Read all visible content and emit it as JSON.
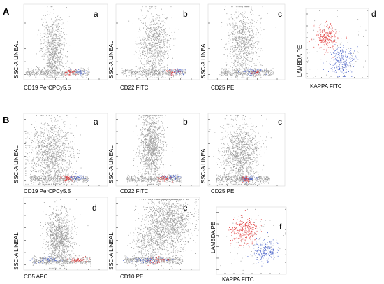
{
  "sections": [
    {
      "label": "A"
    },
    {
      "label": "B"
    }
  ],
  "chart_data": [
    {
      "section": "A",
      "panel": "a",
      "type": "scatter",
      "xlabel": "CD19 PerCPCy5.5",
      "ylabel": "SSC-A LINEAL",
      "populations": [
        {
          "color": "gray",
          "kind": "blob",
          "center": [
            0.35,
            0.6
          ],
          "spread": [
            0.07,
            0.22
          ],
          "n": 900
        },
        {
          "color": "gray",
          "kind": "band",
          "center": [
            0.4,
            0.9
          ],
          "spread": [
            0.38,
            0.025
          ],
          "n": 420
        },
        {
          "color": "red",
          "kind": "blob",
          "center": [
            0.55,
            0.9
          ],
          "spread": [
            0.035,
            0.02
          ],
          "n": 50
        },
        {
          "color": "blue",
          "kind": "blob",
          "center": [
            0.65,
            0.89
          ],
          "spread": [
            0.04,
            0.02
          ],
          "n": 45
        }
      ]
    },
    {
      "section": "A",
      "panel": "b",
      "type": "scatter",
      "xlabel": "CD22 FITC",
      "ylabel": "SSC-A LINEAL",
      "populations": [
        {
          "color": "gray",
          "kind": "blob",
          "center": [
            0.45,
            0.55
          ],
          "spread": [
            0.09,
            0.22
          ],
          "n": 900
        },
        {
          "color": "gray",
          "kind": "band",
          "center": [
            0.45,
            0.9
          ],
          "spread": [
            0.38,
            0.025
          ],
          "n": 420
        },
        {
          "color": "blue",
          "kind": "blob",
          "center": [
            0.72,
            0.89
          ],
          "spread": [
            0.06,
            0.02
          ],
          "n": 60
        },
        {
          "color": "red",
          "kind": "blob",
          "center": [
            0.66,
            0.9
          ],
          "spread": [
            0.04,
            0.018
          ],
          "n": 40
        }
      ]
    },
    {
      "section": "A",
      "panel": "c",
      "type": "scatter",
      "xlabel": "CD25 PE",
      "ylabel": "SSC-A LINEAL",
      "populations": [
        {
          "color": "gray",
          "kind": "blob",
          "center": [
            0.45,
            0.5
          ],
          "spread": [
            0.1,
            0.22
          ],
          "n": 900
        },
        {
          "color": "gray",
          "kind": "band",
          "center": [
            0.5,
            0.9
          ],
          "spread": [
            0.35,
            0.025
          ],
          "n": 420
        },
        {
          "color": "blue",
          "kind": "blob",
          "center": [
            0.58,
            0.89
          ],
          "spread": [
            0.07,
            0.02
          ],
          "n": 60
        },
        {
          "color": "red",
          "kind": "blob",
          "center": [
            0.62,
            0.9
          ],
          "spread": [
            0.04,
            0.018
          ],
          "n": 30
        }
      ]
    },
    {
      "section": "A",
      "panel": "d",
      "type": "scatter",
      "xlabel": "KAPPA FITC",
      "ylabel": "LAMBDA PE",
      "populations": [
        {
          "color": "red",
          "kind": "blob",
          "center": [
            0.32,
            0.4
          ],
          "spread": [
            0.09,
            0.09
          ],
          "n": 260
        },
        {
          "color": "blue",
          "kind": "blob",
          "center": [
            0.58,
            0.75
          ],
          "spread": [
            0.1,
            0.1
          ],
          "n": 280
        },
        {
          "color": "gray",
          "kind": "blob",
          "center": [
            0.45,
            0.55
          ],
          "spread": [
            0.3,
            0.25
          ],
          "n": 80
        }
      ]
    },
    {
      "section": "B",
      "panel": "a",
      "type": "scatter",
      "xlabel": "CD19 PerCPCy5.5",
      "ylabel": "SSC-A LINEAL",
      "populations": [
        {
          "color": "gray",
          "kind": "blob",
          "center": [
            0.32,
            0.55
          ],
          "spread": [
            0.13,
            0.22
          ],
          "n": 1300
        },
        {
          "color": "gray",
          "kind": "band",
          "center": [
            0.42,
            0.9
          ],
          "spread": [
            0.35,
            0.025
          ],
          "n": 450
        },
        {
          "color": "red",
          "kind": "blob",
          "center": [
            0.52,
            0.89
          ],
          "spread": [
            0.04,
            0.022
          ],
          "n": 60
        },
        {
          "color": "blue",
          "kind": "blob",
          "center": [
            0.64,
            0.88
          ],
          "spread": [
            0.05,
            0.022
          ],
          "n": 60
        }
      ]
    },
    {
      "section": "B",
      "panel": "b",
      "type": "scatter",
      "xlabel": "CD22 FITC",
      "ylabel": "SSC-A LINEAL",
      "populations": [
        {
          "color": "gray",
          "kind": "blob",
          "center": [
            0.42,
            0.45
          ],
          "spread": [
            0.07,
            0.22
          ],
          "n": 1200
        },
        {
          "color": "gray",
          "kind": "band",
          "center": [
            0.45,
            0.9
          ],
          "spread": [
            0.33,
            0.025
          ],
          "n": 420
        },
        {
          "color": "red",
          "kind": "blob",
          "center": [
            0.58,
            0.89
          ],
          "spread": [
            0.05,
            0.02
          ],
          "n": 55
        },
        {
          "color": "blue",
          "kind": "blob",
          "center": [
            0.68,
            0.88
          ],
          "spread": [
            0.05,
            0.02
          ],
          "n": 55
        }
      ]
    },
    {
      "section": "B",
      "panel": "c",
      "type": "scatter",
      "xlabel": "CD25 PE",
      "ylabel": "SSC-A LINEAL",
      "populations": [
        {
          "color": "gray",
          "kind": "blob",
          "center": [
            0.42,
            0.55
          ],
          "spread": [
            0.12,
            0.22
          ],
          "n": 1200
        },
        {
          "color": "gray",
          "kind": "band",
          "center": [
            0.45,
            0.9
          ],
          "spread": [
            0.35,
            0.025
          ],
          "n": 420
        },
        {
          "color": "blue",
          "kind": "blob",
          "center": [
            0.52,
            0.89
          ],
          "spread": [
            0.05,
            0.02
          ],
          "n": 65
        },
        {
          "color": "red",
          "kind": "blob",
          "center": [
            0.48,
            0.9
          ],
          "spread": [
            0.03,
            0.02
          ],
          "n": 35
        }
      ]
    },
    {
      "section": "B",
      "panel": "d",
      "type": "scatter",
      "xlabel": "CD5 APC",
      "ylabel": "SSC-A LINEAL",
      "populations": [
        {
          "color": "gray",
          "kind": "blob",
          "center": [
            0.42,
            0.55
          ],
          "spread": [
            0.08,
            0.18
          ],
          "n": 1200
        },
        {
          "color": "gray",
          "kind": "band",
          "center": [
            0.45,
            0.87
          ],
          "spread": [
            0.35,
            0.03
          ],
          "n": 450
        },
        {
          "color": "blue",
          "kind": "blob",
          "center": [
            0.28,
            0.86
          ],
          "spread": [
            0.1,
            0.02
          ],
          "n": 60
        },
        {
          "color": "red",
          "kind": "blob",
          "center": [
            0.62,
            0.86
          ],
          "spread": [
            0.05,
            0.02
          ],
          "n": 50
        }
      ]
    },
    {
      "section": "B",
      "panel": "e",
      "type": "scatter",
      "xlabel": "CD10 PE",
      "ylabel": "SSC-A LINEAL",
      "populations": [
        {
          "color": "gray",
          "kind": "blob",
          "center": [
            0.62,
            0.35
          ],
          "spread": [
            0.14,
            0.2
          ],
          "n": 1500
        },
        {
          "color": "gray",
          "kind": "blob",
          "center": [
            0.38,
            0.62
          ],
          "spread": [
            0.1,
            0.12
          ],
          "n": 350
        },
        {
          "color": "gray",
          "kind": "band",
          "center": [
            0.45,
            0.86
          ],
          "spread": [
            0.35,
            0.03
          ],
          "n": 450
        },
        {
          "color": "blue",
          "kind": "blob",
          "center": [
            0.38,
            0.86
          ],
          "spread": [
            0.12,
            0.02
          ],
          "n": 70
        },
        {
          "color": "red",
          "kind": "blob",
          "center": [
            0.5,
            0.86
          ],
          "spread": [
            0.06,
            0.02
          ],
          "n": 50
        }
      ]
    },
    {
      "section": "B",
      "panel": "f",
      "type": "scatter",
      "xlabel": "KAPPA FITC",
      "ylabel": "LAMBDA PE",
      "populations": [
        {
          "color": "red",
          "kind": "blob",
          "center": [
            0.4,
            0.35
          ],
          "spread": [
            0.1,
            0.1
          ],
          "n": 300
        },
        {
          "color": "blue",
          "kind": "blob",
          "center": [
            0.68,
            0.65
          ],
          "spread": [
            0.08,
            0.09
          ],
          "n": 230
        },
        {
          "color": "gray",
          "kind": "blob",
          "center": [
            0.5,
            0.5
          ],
          "spread": [
            0.3,
            0.28
          ],
          "n": 90
        }
      ]
    }
  ],
  "colors": {
    "gray": "#9a9a9a",
    "red": "#e23b3b",
    "blue": "#4a63c9"
  }
}
